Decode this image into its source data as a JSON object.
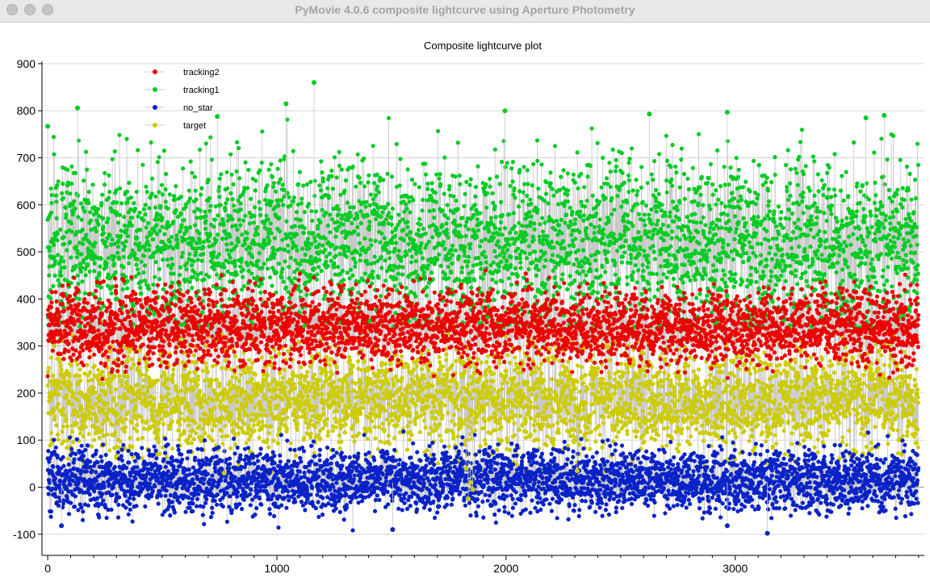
{
  "window": {
    "title": "PyMovie 4.0.6 composite lightcurve using Aperture Photometry"
  },
  "chart_data": {
    "type": "scatter",
    "title": "Composite lightcurve plot",
    "xlabel": "",
    "ylabel": "",
    "xlim": [
      -25,
      3825
    ],
    "ylim": [
      -145,
      905
    ],
    "x_ticks": [
      0,
      1000,
      2000,
      3000
    ],
    "y_ticks": [
      -100,
      0,
      100,
      200,
      300,
      400,
      500,
      600,
      700,
      800,
      900
    ],
    "grid": "horizontal",
    "legend_placement": "top-left",
    "point_count_per_series": 3800,
    "connecting_line_color": "#c8c8c8",
    "series": [
      {
        "name": "target",
        "color": "#cccc00",
        "mean": 185,
        "sd": 55,
        "range": [
          -30,
          330
        ]
      },
      {
        "name": "no_star",
        "color": "#0a23c8",
        "mean": 15,
        "sd": 33,
        "range": [
          -100,
          130
        ]
      },
      {
        "name": "tracking1",
        "color": "#00cc22",
        "mean": 520,
        "sd": 85,
        "range": [
          340,
          860
        ]
      },
      {
        "name": "tracking2",
        "color": "#ee0000",
        "mean": 340,
        "sd": 40,
        "range": [
          220,
          470
        ]
      }
    ],
    "legend_order": [
      "tracking2",
      "tracking1",
      "no_star",
      "target"
    ],
    "dips": [
      {
        "series": "target",
        "x": 1835,
        "y": -25
      },
      {
        "series": "target",
        "x": 1845,
        "y": 10
      },
      {
        "series": "target",
        "x": 1855,
        "y": -5
      },
      {
        "series": "target",
        "x": 1825,
        "y": 40
      },
      {
        "series": "target",
        "x": 770,
        "y": 30
      },
      {
        "series": "target",
        "x": 2310,
        "y": 35
      }
    ],
    "highlights": [
      {
        "series": "tracking1",
        "x": 1162,
        "y": 860
      },
      {
        "series": "tracking1",
        "x": 1040,
        "y": 815
      },
      {
        "series": "tracking1",
        "x": 130,
        "y": 806
      },
      {
        "series": "tracking1",
        "x": 1995,
        "y": 800
      },
      {
        "series": "tracking1",
        "x": 2965,
        "y": 797
      },
      {
        "series": "tracking1",
        "x": 2625,
        "y": 793
      },
      {
        "series": "tracking1",
        "x": 3650,
        "y": 790
      },
      {
        "series": "tracking1",
        "x": 740,
        "y": 788
      },
      {
        "series": "tracking1",
        "x": 3570,
        "y": 785
      },
      {
        "series": "tracking1",
        "x": 0,
        "y": 767
      },
      {
        "series": "no_star",
        "x": 3140,
        "y": -98
      },
      {
        "series": "no_star",
        "x": 1505,
        "y": -90
      },
      {
        "series": "no_star",
        "x": 60,
        "y": -82
      },
      {
        "series": "no_star",
        "x": 2965,
        "y": -82
      }
    ]
  }
}
